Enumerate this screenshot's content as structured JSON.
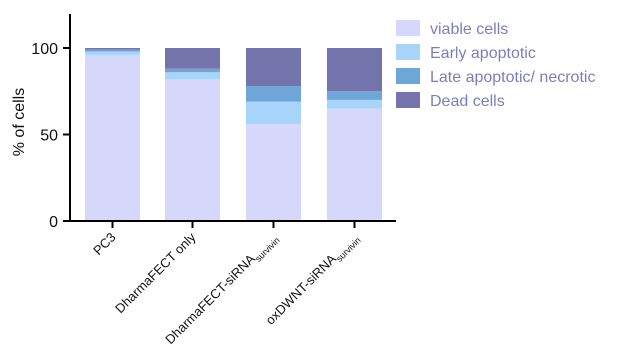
{
  "chart_data": {
    "type": "bar",
    "stacked": true,
    "title": "",
    "xlabel": "",
    "ylabel": "% of cells",
    "ylim": [
      0,
      120
    ],
    "yticks": [
      0,
      50,
      100
    ],
    "grid": false,
    "legend_position": "right",
    "categories": [
      {
        "label": "PC3",
        "sub": ""
      },
      {
        "label": "DharmaFECT only",
        "sub": ""
      },
      {
        "label": "DharmaFECT-siRNA",
        "sub": "survivin"
      },
      {
        "label": "oxDWNT-siRNA",
        "sub": "survivin"
      }
    ],
    "series": [
      {
        "name": "viable cells",
        "color": "#d6d7fa",
        "values": [
          96,
          82,
          56,
          65
        ]
      },
      {
        "name": "Early apoptotic",
        "color": "#a9d4f9",
        "values": [
          2,
          4,
          13,
          5
        ]
      },
      {
        "name": "Late apoptotic/ necrotic",
        "color": "#6fa6d8",
        "values": [
          1,
          2,
          9,
          5
        ]
      },
      {
        "name": "Dead cells",
        "color": "#7474ad",
        "values": [
          1,
          12,
          22,
          25
        ]
      }
    ]
  }
}
